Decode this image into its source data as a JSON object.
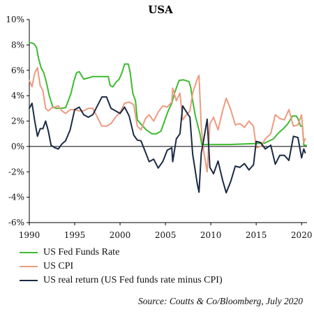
{
  "chart_data": {
    "type": "line",
    "title": "USA",
    "source": "Source: Coutts & Co/Bloomberg, July 2020",
    "ylim": [
      -6,
      10
    ],
    "xlim": [
      1990,
      2020.6
    ],
    "ytick_values": [
      -6,
      -4,
      -2,
      0,
      2,
      4,
      6,
      8,
      10
    ],
    "ytick_labels": [
      "-6%",
      "-4%",
      "-2%",
      "0%",
      "2%",
      "4%",
      "6%",
      "8%",
      "10%"
    ],
    "xtick_values": [
      1990,
      1995,
      2000,
      2005,
      2010,
      2015,
      2020
    ],
    "xtick_labels": [
      "1990",
      "1995",
      "2000",
      "2005",
      "2010",
      "2015",
      "2020"
    ],
    "grid": false,
    "legend_position": "bottom",
    "series": [
      {
        "name": "US Fed Funds Rate",
        "color": "#3dbb2f",
        "x": [
          1990.0,
          1990.5,
          1990.8,
          1991.0,
          1991.3,
          1991.6,
          1991.9,
          1992.2,
          1992.6,
          1993.0,
          1993.5,
          1994.0,
          1994.3,
          1994.6,
          1994.9,
          1995.2,
          1995.5,
          1996.0,
          1997.0,
          1998.0,
          1998.7,
          1998.9,
          1999.2,
          1999.6,
          1999.9,
          2000.2,
          2000.5,
          2000.9,
          2001.1,
          2001.4,
          2001.7,
          2001.9,
          2002.3,
          2002.9,
          2003.5,
          2004.0,
          2004.5,
          2004.9,
          2005.3,
          2005.7,
          2006.0,
          2006.5,
          2007.0,
          2007.6,
          2007.8,
          2008.0,
          2008.3,
          2008.8,
          2009.0,
          2010.0,
          2012.0,
          2015.9,
          2016.9,
          2017.5,
          2018.0,
          2018.5,
          2019.0,
          2019.4,
          2019.6,
          2019.9,
          2020.1,
          2020.25,
          2020.5
        ],
        "y": [
          8.2,
          8.1,
          7.8,
          7.0,
          6.2,
          5.8,
          5.0,
          4.0,
          3.1,
          3.0,
          3.0,
          3.05,
          3.6,
          4.2,
          5.1,
          5.8,
          5.9,
          5.3,
          5.5,
          5.5,
          5.5,
          4.8,
          4.7,
          5.1,
          5.3,
          5.8,
          6.5,
          6.5,
          5.9,
          4.2,
          3.6,
          2.1,
          1.75,
          1.3,
          1.0,
          1.0,
          1.2,
          2.0,
          2.8,
          3.4,
          4.2,
          5.2,
          5.25,
          5.1,
          4.6,
          3.6,
          2.4,
          1.0,
          0.15,
          0.15,
          0.15,
          0.25,
          0.6,
          1.1,
          1.4,
          1.8,
          2.4,
          2.4,
          2.2,
          1.6,
          1.6,
          0.1,
          0.1
        ]
      },
      {
        "name": "US CPI",
        "color": "#ee9a80",
        "x": [
          1990.0,
          1990.3,
          1990.6,
          1990.9,
          1991.2,
          1991.5,
          1991.8,
          1992.1,
          1992.4,
          1992.8,
          1993.2,
          1993.6,
          1994.0,
          1994.5,
          1995.0,
          1995.5,
          1996.0,
          1996.5,
          1997.0,
          1997.5,
          1998.0,
          1998.5,
          1999.0,
          1999.5,
          2000.0,
          2000.5,
          2001.0,
          2001.5,
          2001.9,
          2002.3,
          2002.8,
          2003.2,
          2003.7,
          2004.2,
          2004.7,
          2005.2,
          2005.7,
          2005.8,
          2006.2,
          2006.6,
          2006.9,
          2007.2,
          2007.7,
          2008.0,
          2008.5,
          2008.7,
          2008.95,
          2009.2,
          2009.6,
          2009.9,
          2010.3,
          2010.8,
          2011.3,
          2011.7,
          2012.2,
          2012.7,
          2013.2,
          2013.7,
          2014.2,
          2014.7,
          2015.0,
          2015.5,
          2016.0,
          2016.6,
          2017.1,
          2017.6,
          2018.1,
          2018.6,
          2019.1,
          2019.6,
          2020.0,
          2020.25,
          2020.4
        ],
        "y": [
          5.2,
          4.7,
          5.8,
          6.2,
          4.8,
          4.4,
          3.0,
          2.8,
          3.0,
          3.1,
          3.2,
          2.8,
          2.6,
          2.9,
          2.9,
          2.8,
          2.8,
          3.0,
          3.0,
          2.3,
          1.6,
          1.6,
          1.8,
          2.3,
          2.7,
          3.4,
          3.5,
          3.3,
          1.6,
          1.3,
          2.2,
          2.5,
          2.0,
          2.7,
          3.2,
          3.1,
          3.5,
          4.6,
          3.6,
          4.2,
          2.1,
          2.4,
          2.8,
          4.2,
          5.3,
          5.6,
          1.5,
          -0.3,
          -2.0,
          1.8,
          2.3,
          1.3,
          2.8,
          3.8,
          2.9,
          1.7,
          1.8,
          1.5,
          2.0,
          1.6,
          -0.1,
          0.0,
          0.6,
          1.0,
          2.5,
          2.2,
          2.1,
          2.9,
          1.6,
          1.7,
          2.5,
          0.3,
          0.6
        ]
      },
      {
        "name": "US real return (US Fed funds rate minus CPI)",
        "color": "#1b2a44",
        "x": [
          1990.0,
          1990.3,
          1990.6,
          1990.9,
          1991.2,
          1991.5,
          1991.8,
          1992.1,
          1992.4,
          1992.8,
          1993.2,
          1993.6,
          1994.0,
          1994.5,
          1995.0,
          1995.5,
          1996.0,
          1996.5,
          1997.0,
          1997.5,
          1998.0,
          1998.5,
          1999.0,
          1999.5,
          2000.0,
          2000.5,
          2001.0,
          2001.5,
          2001.9,
          2002.3,
          2002.8,
          2003.2,
          2003.7,
          2004.2,
          2004.7,
          2005.2,
          2005.7,
          2005.8,
          2006.2,
          2006.6,
          2006.9,
          2007.2,
          2007.7,
          2008.0,
          2008.5,
          2008.7,
          2008.95,
          2009.2,
          2009.6,
          2009.9,
          2010.3,
          2010.8,
          2011.3,
          2011.7,
          2012.2,
          2012.7,
          2013.2,
          2013.7,
          2014.2,
          2014.7,
          2015.0,
          2015.5,
          2016.0,
          2016.6,
          2017.1,
          2017.6,
          2018.1,
          2018.6,
          2019.1,
          2019.6,
          2020.0,
          2020.25,
          2020.4
        ],
        "y": [
          3.0,
          3.4,
          2.0,
          0.8,
          1.4,
          1.4,
          2.0,
          1.2,
          0.1,
          -0.1,
          -0.2,
          0.2,
          0.45,
          1.3,
          2.9,
          3.1,
          2.5,
          2.3,
          2.5,
          3.2,
          3.9,
          3.9,
          3.0,
          2.8,
          2.6,
          3.1,
          2.4,
          0.9,
          0.5,
          0.45,
          -0.45,
          -1.2,
          -1.0,
          -1.7,
          -1.2,
          -0.3,
          -0.1,
          -1.2,
          0.6,
          1.0,
          3.2,
          2.85,
          2.3,
          -0.6,
          -2.9,
          -3.6,
          -0.5,
          0.45,
          2.15,
          -1.65,
          -2.15,
          -1.15,
          -2.65,
          -3.65,
          -2.75,
          -1.55,
          -1.65,
          -1.35,
          -1.85,
          -1.45,
          0.4,
          0.3,
          -0.2,
          0.1,
          -1.4,
          -0.7,
          -0.7,
          -1.1,
          0.8,
          0.7,
          -0.9,
          -0.2,
          -0.5
        ]
      }
    ]
  }
}
